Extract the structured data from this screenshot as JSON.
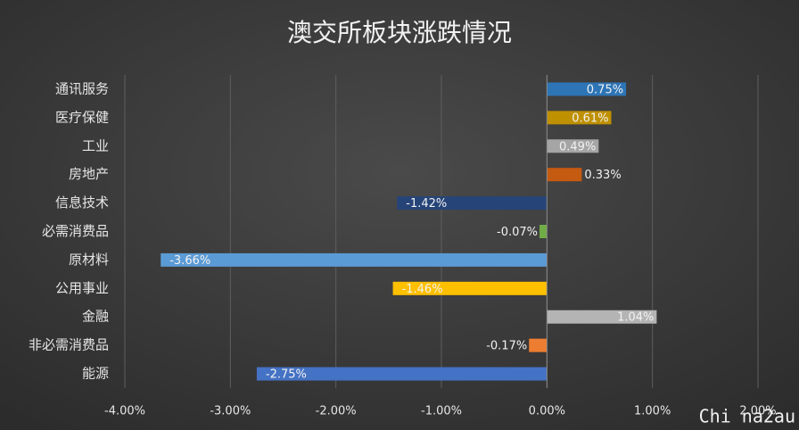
{
  "chart_data": {
    "type": "hbar",
    "title": "澳交所板块涨跌情况",
    "categories": [
      "通讯服务",
      "医疗保健",
      "工业",
      "房地产",
      "信息技术",
      "必需消费品",
      "原材料",
      "公用事业",
      "金融",
      "非必需消费品",
      "能源"
    ],
    "values": [
      0.75,
      0.61,
      0.49,
      0.33,
      -1.42,
      -0.07,
      -3.66,
      -1.46,
      1.04,
      -0.17,
      -2.75
    ],
    "value_labels": [
      "0.75%",
      "0.61%",
      "0.49%",
      "0.33%",
      "-1.42%",
      "-0.07%",
      "-3.66%",
      "-1.46%",
      "1.04%",
      "-0.17%",
      "-2.75%"
    ],
    "colors": [
      "#2e75b6",
      "#bf9000",
      "#a5a5a5",
      "#c55a11",
      "#264478",
      "#70ad47",
      "#5b9bd5",
      "#ffc000",
      "#b4b4b4",
      "#ed7d31",
      "#4472c4"
    ],
    "xlim": [
      -4,
      2
    ],
    "xticks": [
      {
        "value": -4,
        "label": "-4.00%"
      },
      {
        "value": -3,
        "label": "-3.00%"
      },
      {
        "value": -2,
        "label": "-2.00%"
      },
      {
        "value": -1,
        "label": "-1.00%"
      },
      {
        "value": 0,
        "label": "0.00%"
      },
      {
        "value": 1,
        "label": "1.00%"
      },
      {
        "value": 2,
        "label": "2.00%"
      }
    ],
    "grid": true,
    "watermark": "Chi na2au"
  }
}
